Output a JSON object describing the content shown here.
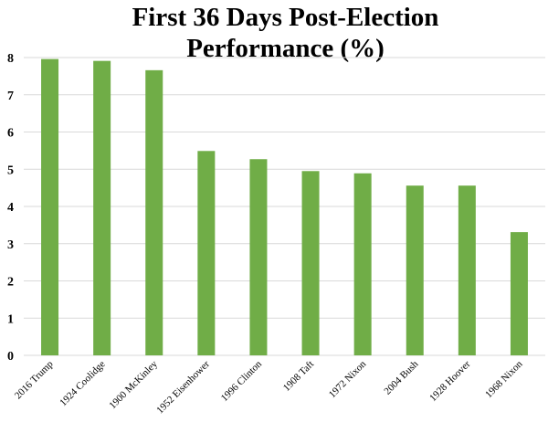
{
  "chart_data": {
    "type": "bar",
    "title_lines": [
      "First 36 Days Post-Election",
      "Performance (%)"
    ],
    "categories": [
      "2016 Trump",
      "1924 Coolidge",
      "1900 McKinley",
      "1952 Eisenhower",
      "1996 Clinton",
      "1908 Taft",
      "1972 Nixon",
      "2004 Bush",
      "1928 Hoover",
      "1968 Nixon"
    ],
    "values": [
      7.96,
      7.91,
      7.66,
      5.49,
      5.27,
      4.95,
      4.89,
      4.56,
      4.56,
      3.31
    ],
    "ylim": [
      0,
      8
    ],
    "yticks": [
      "0",
      "1",
      "2",
      "3",
      "4",
      "5",
      "6",
      "7",
      "8"
    ],
    "xlabel": "",
    "ylabel": "",
    "grid": true,
    "legend": "none",
    "colors": {
      "bar": "#70ad47",
      "grid": "#d9d9d9"
    }
  }
}
